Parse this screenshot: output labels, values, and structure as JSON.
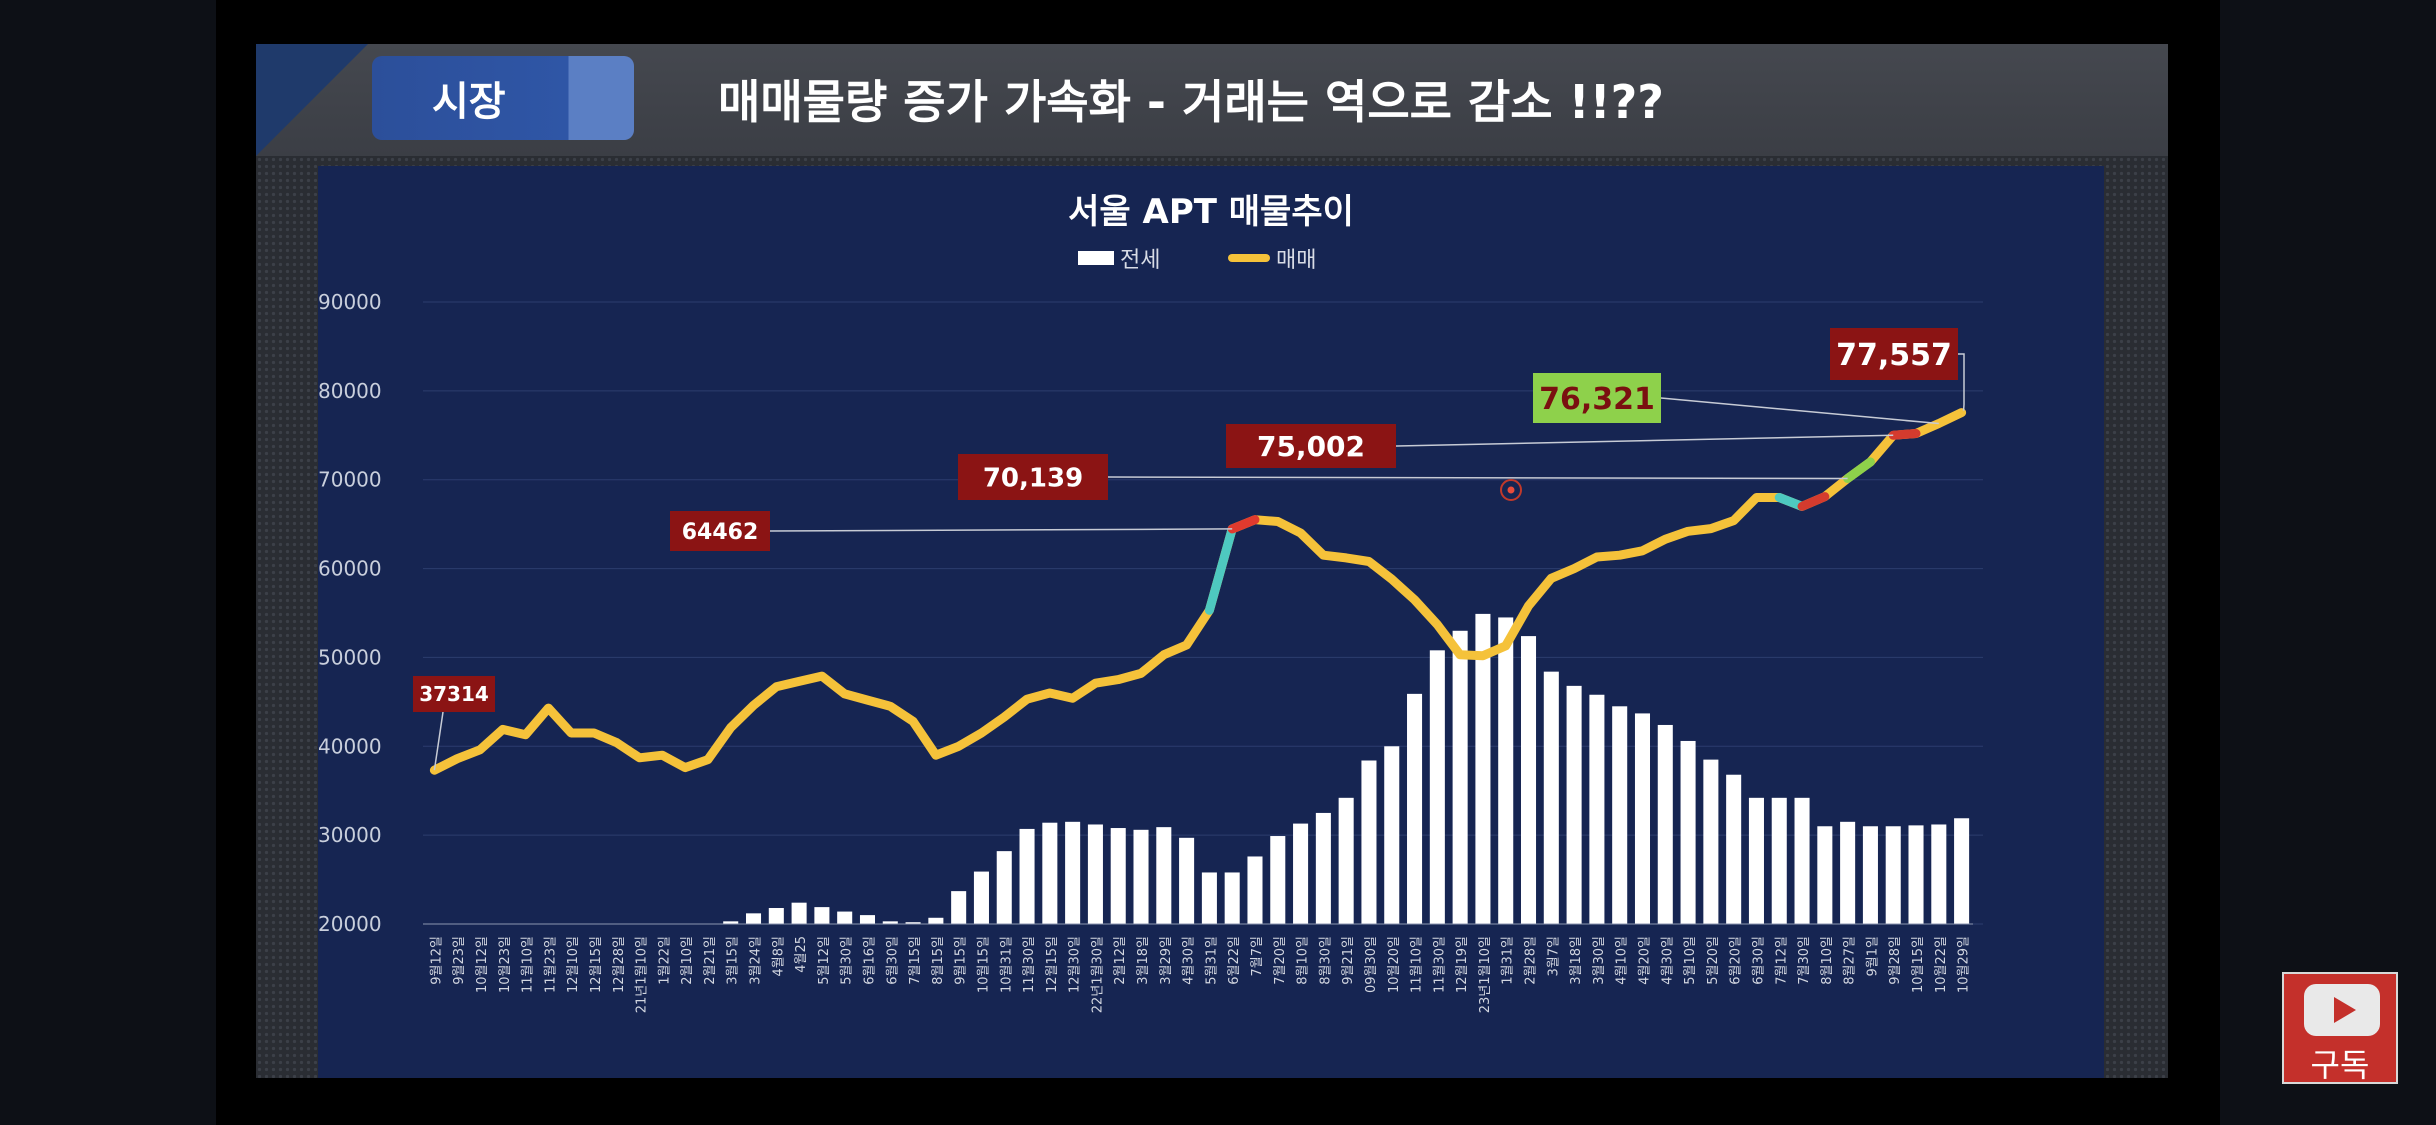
{
  "slide": {
    "badge": "시장",
    "title": "매매물량 증가 가속화  - 거래는 역으로 감소  !!??"
  },
  "subscribe": {
    "label": "구독",
    "icon": "youtube-play-icon"
  },
  "colors": {
    "bars": "#ffffff",
    "line": "#f5c23a",
    "chart_bg": "#162552",
    "label_red": "#8b1414",
    "label_green": "#8ed14b"
  },
  "chart_data": {
    "type": "bar+line",
    "title": "서울 APT 매물추이",
    "legend": [
      {
        "name": "전세",
        "kind": "bar"
      },
      {
        "name": "매매",
        "kind": "line"
      }
    ],
    "legend_position": "top-center",
    "ylim": [
      20000,
      90000
    ],
    "yticks": [
      90000,
      80000,
      70000,
      60000,
      50000,
      40000,
      30000,
      20000
    ],
    "grid": true,
    "categories": [
      "9월12일",
      "9월23일",
      "10월12일",
      "10월23일",
      "11월10일",
      "11월23일",
      "12월10일",
      "12월15일",
      "12월28일",
      "21년1월10일",
      "1월22일",
      "2월10일",
      "2월21일",
      "3월15일",
      "3월24일",
      "4월8일",
      "4월25",
      "5월12일",
      "5월30일",
      "6월16일",
      "6월30일",
      "7월15일",
      "8월15일",
      "9월15일",
      "10월15일",
      "10월31일",
      "11월30일",
      "12월15일",
      "12월30일",
      "22년1월30일",
      "2월12일",
      "3월18일",
      "3월29일",
      "4월30일",
      "5월31일",
      "6월22일",
      "7월7일",
      "7월20일",
      "8월10일",
      "8월30일",
      "9월21일",
      "09월30일",
      "10월20일",
      "11월10일",
      "11월30일",
      "12월19일",
      "23년1월10일",
      "1월31일",
      "2월28일",
      "3월7일",
      "3월18일",
      "3월30일",
      "4월10일",
      "4월20일",
      "4월30일",
      "5월10일",
      "5월20일",
      "6월20일",
      "6월30일",
      "7월12일",
      "7월30일",
      "8월10일",
      "8월27일",
      "9월1일",
      "9월28일",
      "10월15일",
      "10월22일",
      "10월29일"
    ],
    "series": [
      {
        "name": "전세",
        "type": "bar",
        "values": [
          20000,
          20000,
          20000,
          20000,
          20000,
          20000,
          20000,
          20000,
          20000,
          20000,
          20000,
          20000,
          20000,
          20300,
          21200,
          21800,
          22400,
          21900,
          21400,
          21000,
          20300,
          20200,
          20700,
          23700,
          25900,
          28200,
          30700,
          31400,
          31500,
          31200,
          30800,
          30600,
          30900,
          29700,
          25800,
          25800,
          27600,
          29900,
          31300,
          32500,
          34200,
          38400,
          40000,
          45900,
          50800,
          53000,
          54900,
          54500,
          52400,
          48400,
          46800,
          45800,
          44500,
          43700,
          42400,
          40600,
          38500,
          36800,
          34200,
          34200,
          34200,
          31000,
          31500,
          31000,
          31000,
          31100,
          31200,
          31900
        ]
      },
      {
        "name": "매매",
        "type": "line",
        "values": [
          37314,
          38600,
          39600,
          41900,
          41300,
          44300,
          41500,
          41500,
          40400,
          38700,
          39000,
          37600,
          38500,
          42100,
          44600,
          46700,
          47300,
          47900,
          45900,
          45200,
          44500,
          42800,
          39000,
          40000,
          41500,
          43300,
          45300,
          46000,
          45400,
          47100,
          47500,
          48200,
          50300,
          51400,
          55300,
          64462,
          65500,
          65300,
          64000,
          61500,
          61200,
          60800,
          58800,
          56500,
          53700,
          50300,
          50200,
          51300,
          55800,
          58900,
          60000,
          61300,
          61500,
          62000,
          63300,
          64200,
          64500,
          65400,
          68000,
          68000,
          67000,
          68100,
          70139,
          72000,
          75002,
          75200,
          76321,
          77557
        ]
      }
    ],
    "annotations": [
      {
        "text": "37314",
        "at_index": 0,
        "style": "red"
      },
      {
        "text": "64462",
        "at_index": 35,
        "style": "red"
      },
      {
        "text": "70,139",
        "at_index": 62,
        "style": "red"
      },
      {
        "text": "75,002",
        "at_index": 64,
        "style": "red"
      },
      {
        "text": "76,321",
        "at_index": 66,
        "style": "green"
      },
      {
        "text": "77,557",
        "at_index": 67,
        "style": "red"
      }
    ]
  }
}
